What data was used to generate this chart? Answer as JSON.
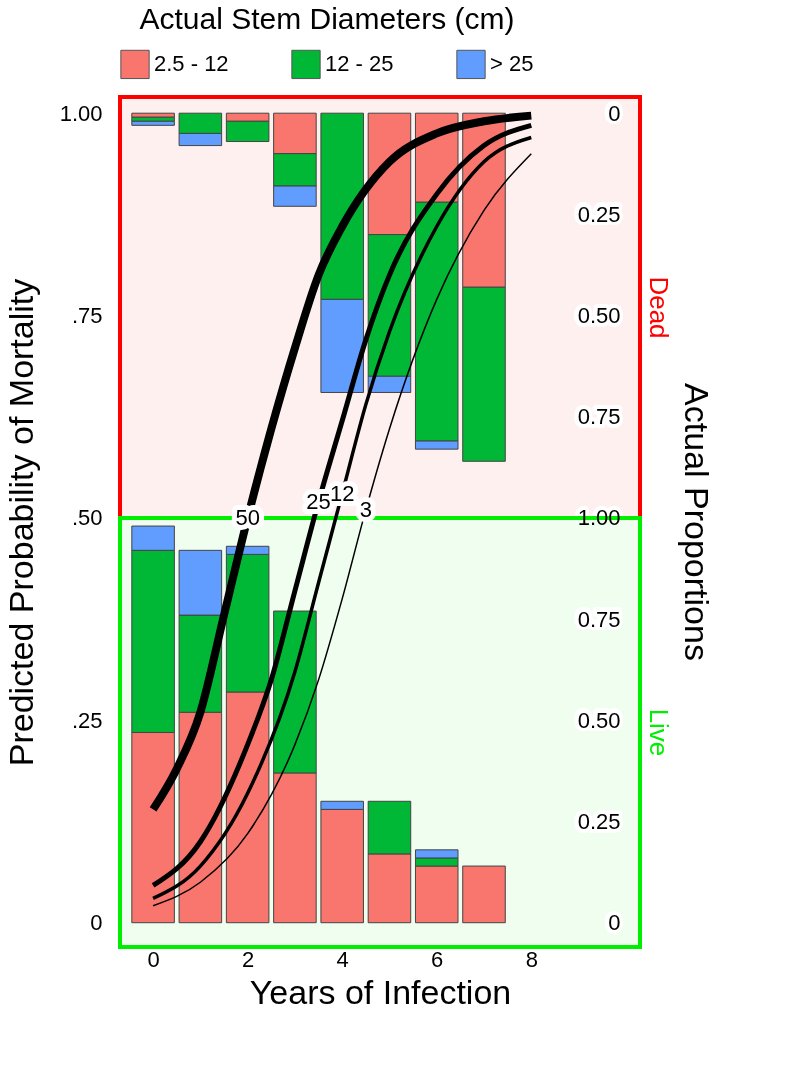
{
  "chart_data": {
    "type": "bar",
    "stacked": true,
    "legend": "top",
    "legend_title": "Actual Stem Diameters (cm)",
    "xlabel": "Years of Infection",
    "ylabel": "Predicted Probability of Mortality",
    "y2label": "Actual Proportions",
    "x": [
      0,
      1,
      2,
      3,
      4,
      5,
      6,
      7
    ],
    "xlim": [
      -0.7,
      10.3
    ],
    "xticks": [
      0,
      2,
      4,
      6,
      8
    ],
    "ylim": [
      -0.03,
      1.02
    ],
    "yticks": [
      {
        "value": 0,
        "label": "0"
      },
      {
        "value": 0.25,
        "label": ".25"
      },
      {
        "value": 0.5,
        "label": ".50"
      },
      {
        "value": 0.75,
        "label": ".75"
      },
      {
        "value": 1,
        "label": "1.00"
      }
    ],
    "y2lim": [
      2.06,
      -0.04
    ],
    "y2ticks": [
      0,
      {
        "value": 0.25,
        "label": "0.25"
      },
      {
        "value": 0.5,
        "label": "0.50"
      },
      {
        "value": 0.75,
        "label": "0.75"
      },
      {
        "value": 1,
        "label": "1.00"
      }
    ],
    "y3lim": [
      -0.06,
      2.04
    ],
    "y3ticks": [
      0,
      {
        "value": 0.25,
        "label": "0.25"
      },
      {
        "value": 0.5,
        "label": "0.50"
      },
      {
        "value": 0.75,
        "label": "0.75"
      }
    ],
    "grid": false,
    "bands": [
      {
        "axis": "y3",
        "from": -0.06,
        "to": 1,
        "label": "Live",
        "color": "#00ee00"
      },
      {
        "axis": "y2",
        "from": -0.04,
        "to": 1,
        "label": "Dead",
        "color": "#ff0000"
      }
    ],
    "series": [
      {
        "name": "2.5 - 12",
        "color": "#f8766d",
        "axis": "y3",
        "values": [
          0.47,
          0.52,
          0.57,
          0.37,
          0.28,
          0.17,
          0.14,
          0.14
        ]
      },
      {
        "name": "12 - 25",
        "color": "#00b835",
        "axis": "y3",
        "values": [
          0.45,
          0.24,
          0.34,
          0.4,
          0,
          0.13,
          0.02,
          0
        ]
      },
      {
        "name": "> 25",
        "color": "#619cff",
        "axis": "y3",
        "values": [
          0.06,
          0.16,
          0.02,
          0,
          0.02,
          0,
          0.02,
          0
        ]
      },
      {
        "color": "#f8766d",
        "axis": "y2",
        "values": [
          0.01,
          0,
          0.02,
          0.1,
          0,
          0.3,
          0.22,
          0.43
        ]
      },
      {
        "color": "#00b835",
        "axis": "y2",
        "values": [
          0.01,
          0.05,
          0.05,
          0.08,
          0.46,
          0.35,
          0.59,
          0.43
        ]
      },
      {
        "color": "#619cff",
        "axis": "y2",
        "values": [
          0.01,
          0.03,
          0,
          0.05,
          0.23,
          0.04,
          0.02,
          0
        ]
      },
      {
        "name": "50",
        "type": "line",
        "color": "#000000",
        "x": [
          0,
          0.5,
          1,
          1.5,
          2,
          2.5,
          3,
          3.5,
          4,
          5,
          6,
          7,
          8
        ],
        "values": [
          0.14,
          0.19,
          0.26,
          0.38,
          0.5,
          0.61,
          0.71,
          0.8,
          0.86,
          0.94,
          0.975,
          0.99,
          0.997
        ]
      },
      {
        "name": "25",
        "type": "line",
        "color": "#000000",
        "x": [
          0,
          1,
          2,
          2.5,
          3,
          3.5,
          4,
          4.5,
          5,
          6,
          7,
          8
        ],
        "values": [
          0.046,
          0.1,
          0.22,
          0.3,
          0.41,
          0.52,
          0.62,
          0.72,
          0.8,
          0.9,
          0.96,
          0.985
        ]
      },
      {
        "name": "12",
        "type": "line",
        "color": "#000000",
        "x": [
          0,
          1,
          2,
          3,
          3.5,
          4,
          4.5,
          5,
          6,
          7,
          8
        ],
        "values": [
          0.03,
          0.07,
          0.16,
          0.31,
          0.42,
          0.53,
          0.64,
          0.73,
          0.86,
          0.94,
          0.97
        ]
      },
      {
        "name": "3",
        "type": "line",
        "color": "#000000",
        "x": [
          0,
          1,
          2,
          3,
          3.5,
          4,
          4.5,
          5,
          6,
          7,
          8
        ],
        "values": [
          0.021,
          0.05,
          0.11,
          0.22,
          0.3,
          0.4,
          0.51,
          0.61,
          0.77,
          0.88,
          0.95
        ]
      }
    ]
  }
}
